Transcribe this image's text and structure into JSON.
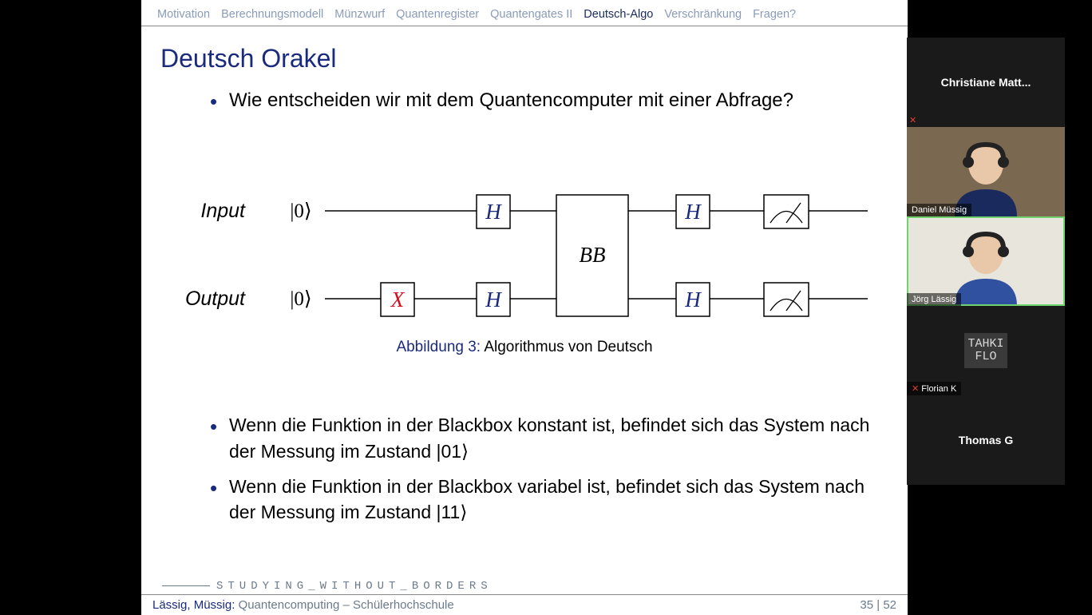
{
  "nav": {
    "items": [
      "Motivation",
      "Berechnungsmodell",
      "Münzwurf",
      "Quantenregister",
      "Quantengates II",
      "Deutsch-Algo",
      "Verschränkung",
      "Fragen?"
    ],
    "active_index": 5,
    "active_color": "#1a2a5c",
    "inactive_color": "#8a9bb8"
  },
  "slide": {
    "title": "Deutsch Orakel",
    "title_color": "#1a2a7c",
    "bullet_top": "Wie entscheiden wir mit dem Quantencomputer mit einer Abfrage?",
    "caption_label": "Abbildung 3:",
    "caption_text": " Algorithmus von Deutsch",
    "bullet2a": "Wenn die Funktion in der Blackbox konstant ist, befindet sich das System nach der Messung im Zustand |01⟩",
    "bullet2b": "Wenn die Funktion in der Blackbox variabel ist, befindet sich das System nach der Messung im Zustand |11⟩",
    "swb": "STUDYING_WITHOUT_BORDERS",
    "footer_authors": "Lässig, Müssig:",
    "footer_title": " Quantencomputing – Schülerhochschule",
    "page_current": 35,
    "page_total": 52
  },
  "circuit": {
    "rows": [
      {
        "label": "Input",
        "ket": "|0⟩"
      },
      {
        "label": "Output",
        "ket": "|0⟩"
      }
    ],
    "gates": {
      "X": {
        "label": "X",
        "color": "#d01020"
      },
      "H": {
        "label": "H",
        "color": "#1a2a7c"
      },
      "BB": {
        "label": "BB",
        "color": "#000000"
      }
    },
    "wire_color": "#000000",
    "box_stroke": "#000000",
    "background": "#ffffff"
  },
  "participants": [
    {
      "name": "Christiane  Matt...",
      "type": "name-only",
      "height": 112,
      "muted": true
    },
    {
      "name": "Daniel Müssig",
      "type": "camera",
      "height": 112,
      "muted": false,
      "bg": "#7a6850",
      "shirt": "#1a2a5c",
      "skin": "#e8c8a8"
    },
    {
      "name": "Jörg Lässig",
      "type": "camera",
      "height": 112,
      "muted": false,
      "active": true,
      "bg": "#e8e6dc",
      "shirt": "#3050a0",
      "skin": "#e8c8a8"
    },
    {
      "name": "Florian K",
      "type": "avatar",
      "height": 112,
      "muted": true,
      "avatar_lines": [
        "TAHKI",
        "FLO"
      ]
    },
    {
      "name": "Thomas  G",
      "type": "name-only",
      "height": 112,
      "muted": false
    }
  ],
  "colors": {
    "panel_bg": "#1a1a1a",
    "mute_color": "#e04030",
    "active_outline": "#6fd36f"
  }
}
